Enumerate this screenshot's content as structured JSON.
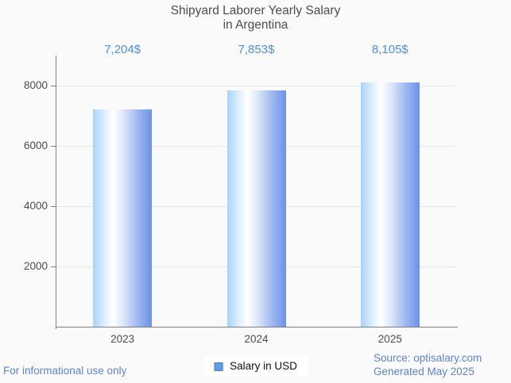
{
  "page": {
    "background_color": "#fafafa"
  },
  "chart_data": {
    "type": "bar",
    "title": "Shipyard Laborer Yearly Salary",
    "subtitle": "in Argentina",
    "categories": [
      "2023",
      "2024",
      "2025"
    ],
    "values": [
      7204,
      7853,
      8105
    ],
    "value_labels": [
      "7,204$",
      "7,853$",
      "8,105$"
    ],
    "series_name": "Salary in USD",
    "xlabel": "",
    "ylabel": "",
    "ylim": [
      0,
      9000
    ],
    "yticks": [
      2000,
      4000,
      6000,
      8000
    ],
    "grid": true,
    "legend_position": "bottom-center",
    "colors": {
      "bar_gradient_left": "#a8d3fc",
      "bar_gradient_middle": "#ffffff",
      "bar_gradient_right": "#6b92e9",
      "value_label": "#4e8df2",
      "axis": "#7f7f7f",
      "gridline": "#e6e6e6",
      "tick_text": "#4c4c4c",
      "title_text": "#4d4d4d"
    }
  },
  "legend": {
    "swatch_color": "#5e9cec",
    "label": "Salary in USD"
  },
  "footer": {
    "disclaimer": "For informational use only",
    "source": "Source: optisalary.com",
    "generated": "Generated May 2025",
    "text_color": "#5e83d6"
  }
}
